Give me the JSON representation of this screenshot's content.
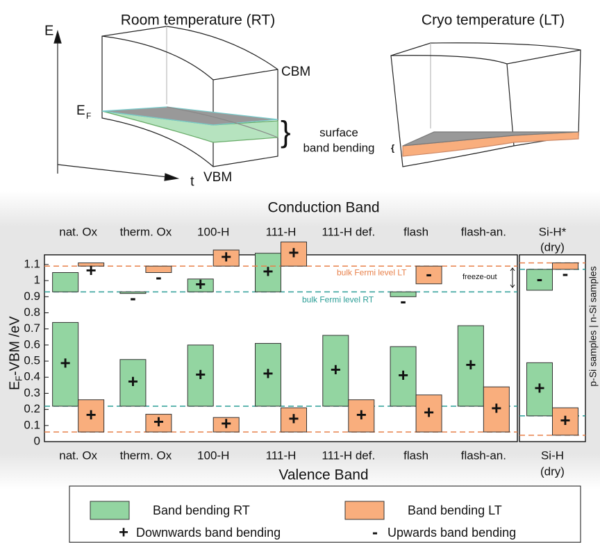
{
  "diagram": {
    "rt_title": "Room temperature (RT)",
    "lt_title": "Cryo temperature (LT)",
    "e_axis": "E",
    "t_axis": "t",
    "ef_label": "E",
    "ef_sub": "F",
    "cbm": "CBM",
    "vbm": "VBM",
    "brace": "}",
    "small_brace": "{",
    "surface_line1": "surface",
    "surface_line2": "band bending"
  },
  "chart_data": {
    "type": "range-bar",
    "top_title": "Conduction Band",
    "bottom_title": "Valence Band",
    "ylabel": "E",
    "ylabel_sub": "F",
    "ylabel_rest": "-VBM /eV",
    "top_categories": [
      "nat. Ox",
      "therm. Ox",
      "100-H",
      "111-H",
      "111-H def.",
      "flash",
      "flash-an.",
      "Si-H*"
    ],
    "categories": [
      "nat. Ox",
      "therm. Ox",
      "100-H",
      "111-H",
      "111-H def.",
      "flash",
      "flash-an.",
      "Si-H"
    ],
    "dry_note": "(dry)",
    "ylim": [
      0,
      1.16
    ],
    "yticks": [
      0,
      0.1,
      0.2,
      0.3,
      0.4,
      0.5,
      0.6,
      0.7,
      0.8,
      0.9,
      1,
      1.1
    ],
    "side_label": "p-Si samples | n-Si samples",
    "annotation": "freeze-out",
    "series": [
      {
        "name": "Band bending RT",
        "color": "#93d5a1",
        "line_color": "#2a9d96",
        "n_values": [
          1.05,
          0.92,
          1.01,
          1.17,
          null,
          0.9,
          null,
          0.94
        ],
        "p_values": [
          0.74,
          0.51,
          0.6,
          0.61,
          0.66,
          0.59,
          0.72,
          0.49
        ],
        "n_signs": [
          null,
          "-",
          "+",
          "+",
          null,
          "-",
          null,
          "-"
        ],
        "p_signs": [
          "+",
          "+",
          "+",
          "+",
          "+",
          "+",
          "+",
          "+"
        ],
        "n_reference": 0.93,
        "p_reference": 0.22,
        "si_n_reference": 1.07,
        "si_p_reference": 0.16,
        "reference_label": "bulk Fermi level RT"
      },
      {
        "name": "Band bending LT",
        "color": "#f9ae7d",
        "line_color": "#e8804a",
        "n_values": [
          1.11,
          1.05,
          1.19,
          1.24,
          null,
          0.98,
          null,
          1.07
        ],
        "p_values": [
          0.26,
          0.17,
          0.15,
          0.21,
          0.26,
          0.29,
          0.34,
          0.21
        ],
        "n_signs": [
          "+",
          "-",
          "+",
          "+",
          null,
          "-",
          null,
          "-"
        ],
        "p_signs": [
          "+",
          "+",
          "+",
          "+",
          "+",
          "+",
          "+",
          "+"
        ],
        "n_reference": 1.09,
        "p_reference": 0.06,
        "si_n_reference": 1.11,
        "si_p_reference": 0.04,
        "reference_label": "bulk Fermi level LT"
      }
    ],
    "legend_signs": [
      {
        "sign": "+",
        "label": "Downwards band bending"
      },
      {
        "sign": "-",
        "label": "Upwards band bending"
      }
    ]
  }
}
